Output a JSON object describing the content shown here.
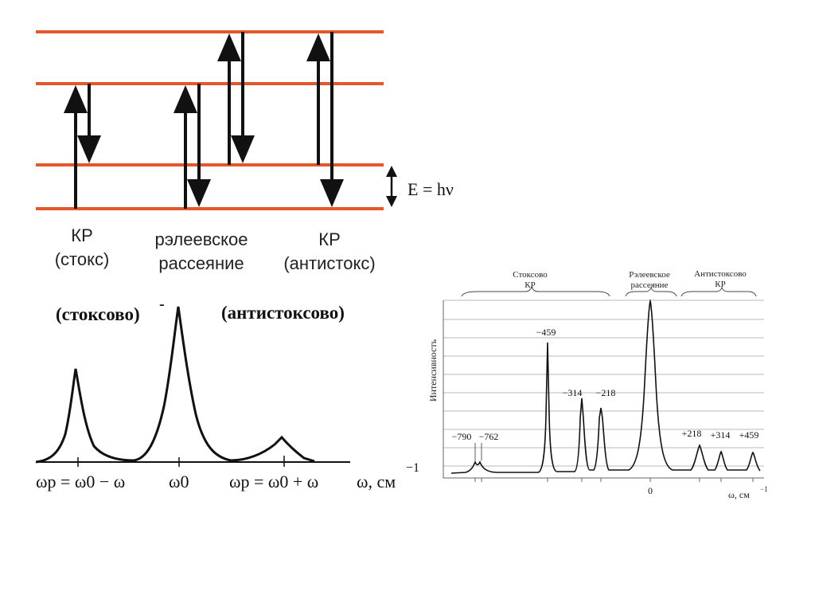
{
  "energy_diagram": {
    "level_color": "#e2582a",
    "arrow_color": "#111111",
    "energy_label": "E = hν",
    "process_labels": {
      "stokes_line1": "КР",
      "stokes_line2": "(стокс)",
      "rayleigh_line1": "рэлеевское",
      "rayleigh_line2": "рассеяние",
      "antistokes_line1": "КР",
      "antistokes_line2": "(антистокс)"
    }
  },
  "schematic_spectrum": {
    "stokes_label": "(стоксово)",
    "antistokes_label": "(антистоксово)",
    "dash_mark": "-",
    "tick_stokes": "ωp = ω0 − ω",
    "tick_center": "ω0",
    "tick_antistokes": "ωp = ω0 + ω",
    "axis_label": "ω, см",
    "axis_exp": "−1"
  },
  "raman_spectrum": {
    "group_stokes_line1": "Стоксово",
    "group_stokes_line2": "КР",
    "group_rayleigh_line1": "Рэлеевское",
    "group_rayleigh_line2": "рассеяние",
    "group_antistokes_line1": "Антистоксово",
    "group_antistokes_line2": "КР",
    "y_label": "Интенсивность",
    "x_label": "ω, см",
    "x_exp": "−1",
    "zero_tick": "0",
    "peak_labels": {
      "m790": "−790",
      "m762": "−762",
      "m459": "−459",
      "m314": "−314",
      "m218": "−218",
      "p218": "+218",
      "p314": "+314",
      "p459": "+459"
    }
  }
}
